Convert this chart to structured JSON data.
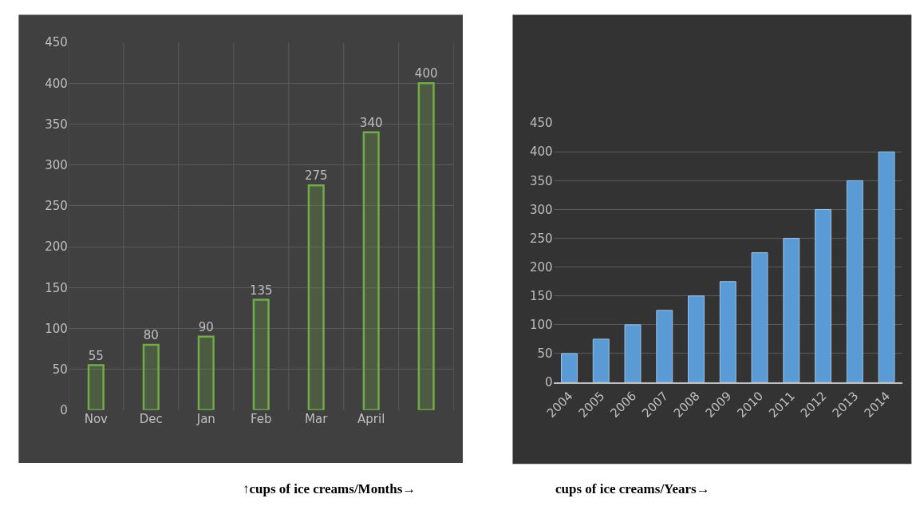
{
  "chart_data": [
    {
      "type": "bar",
      "xlabel": "↑cups of ice creams/Months→",
      "categories": [
        "Nov",
        "Dec",
        "Jan",
        "Feb",
        "Mar",
        "April",
        null
      ],
      "values": [
        55,
        80,
        90,
        135,
        275,
        340,
        400
      ],
      "color": "#70ad47",
      "ylim": [
        0,
        450
      ],
      "yticks": [
        0,
        50,
        100,
        150,
        200,
        250,
        300,
        350,
        400,
        450
      ],
      "grid": true,
      "data_labels": true
    },
    {
      "type": "bar",
      "xlabel": "cups of ice creams/Years→",
      "categories": [
        "2004",
        "2005",
        "2006",
        "2007",
        "2008",
        "2009",
        "2010",
        "2011",
        "2012",
        "2013",
        "2014"
      ],
      "values": [
        50,
        75,
        100,
        125,
        150,
        175,
        225,
        250,
        300,
        350,
        400
      ],
      "color": "#5b9bd5",
      "ylim": [
        0,
        450
      ],
      "yticks": [
        0,
        50,
        100,
        150,
        200,
        250,
        300,
        350,
        400,
        450
      ],
      "grid": "y"
    }
  ]
}
